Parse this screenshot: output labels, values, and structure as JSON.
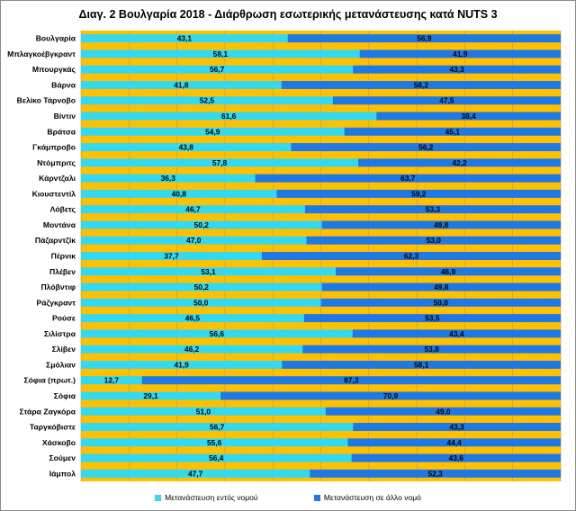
{
  "chart_data": {
    "type": "bar",
    "orientation": "horizontal",
    "stacked": "percent",
    "title": "Διαγ. 2 Βουλγαρία 2018 - Διάρθρωση εσωτερικής μετανάστευσης κατά NUTS 3",
    "categories": [
      "Βουλγαρία",
      "Μπλαγκοέβγκραντ",
      "Μπουργκάς",
      "Βάρνα",
      "Βελίκο Τάρνοβο",
      "Βίντιν",
      "Βράτσα",
      "Γκάμπροβο",
      "Ντόμπριτς",
      "Κάρντζαλι",
      "Κιουστεντίλ",
      "Λόβετς",
      "Μοντάνα",
      "Πάζαρντζίκ",
      "Πέρνικ",
      "Πλέβεν",
      "Πλόβντιφ",
      "Ράζγκραντ",
      "Ρούσε",
      "Σιλίστρα",
      "Σλίβεν",
      "Σμόλιαν",
      "Σόφια (πρωτ.)",
      "Σόφια",
      "Στάρα Ζαγκόρα",
      "Ταργκόβιστε",
      "Χάσκοβο",
      "Σούμεν",
      "Ιάμπολ"
    ],
    "series": [
      {
        "name": "Μετανάστευση εντός νομού",
        "color": "#33D9F0",
        "values": [
          43.1,
          58.1,
          56.7,
          41.8,
          52.5,
          61.6,
          54.9,
          43.8,
          57.8,
          36.3,
          40.8,
          46.7,
          50.2,
          47.0,
          37.7,
          53.1,
          50.2,
          50.0,
          46.5,
          56.6,
          46.2,
          41.9,
          12.7,
          29.1,
          51.0,
          56.7,
          55.6,
          56.4,
          47.7
        ],
        "labels": [
          "43,1",
          "58,1",
          "56,7",
          "41,8",
          "52,5",
          "61,6",
          "54,9",
          "43,8",
          "57,8",
          "36,3",
          "40,8",
          "46,7",
          "50,2",
          "47,0",
          "37,7",
          "53,1",
          "50,2",
          "50,0",
          "46,5",
          "56,6",
          "46,2",
          "41,9",
          "12,7",
          "29,1",
          "51,0",
          "56,7",
          "55,6",
          "56,4",
          "47,7"
        ]
      },
      {
        "name": "Μετανάστευση σε άλλο νομό",
        "color": "#1E78E6",
        "values": [
          56.9,
          41.9,
          43.3,
          58.2,
          47.5,
          38.4,
          45.1,
          56.2,
          42.2,
          63.7,
          59.2,
          53.3,
          49.8,
          53.0,
          62.3,
          46.9,
          49.8,
          50.0,
          53.5,
          43.4,
          53.8,
          58.1,
          87.3,
          70.9,
          49.0,
          43.3,
          44.4,
          43.6,
          52.3
        ],
        "labels": [
          "56,9",
          "41,9",
          "43,3",
          "58,2",
          "47,5",
          "38,4",
          "45,1",
          "56,2",
          "42,2",
          "63,7",
          "59,2",
          "53,3",
          "49,8",
          "53,0",
          "62,3",
          "46,9",
          "49,8",
          "50,0",
          "53,5",
          "43,4",
          "53,8",
          "58,1",
          "87,3",
          "70,9",
          "49,0",
          "43,3",
          "44,4",
          "43,6",
          "52,3"
        ]
      }
    ],
    "xlim": [
      0,
      100
    ],
    "grid": true,
    "legend_position": "bottom",
    "plot_background": "#FFC000"
  }
}
